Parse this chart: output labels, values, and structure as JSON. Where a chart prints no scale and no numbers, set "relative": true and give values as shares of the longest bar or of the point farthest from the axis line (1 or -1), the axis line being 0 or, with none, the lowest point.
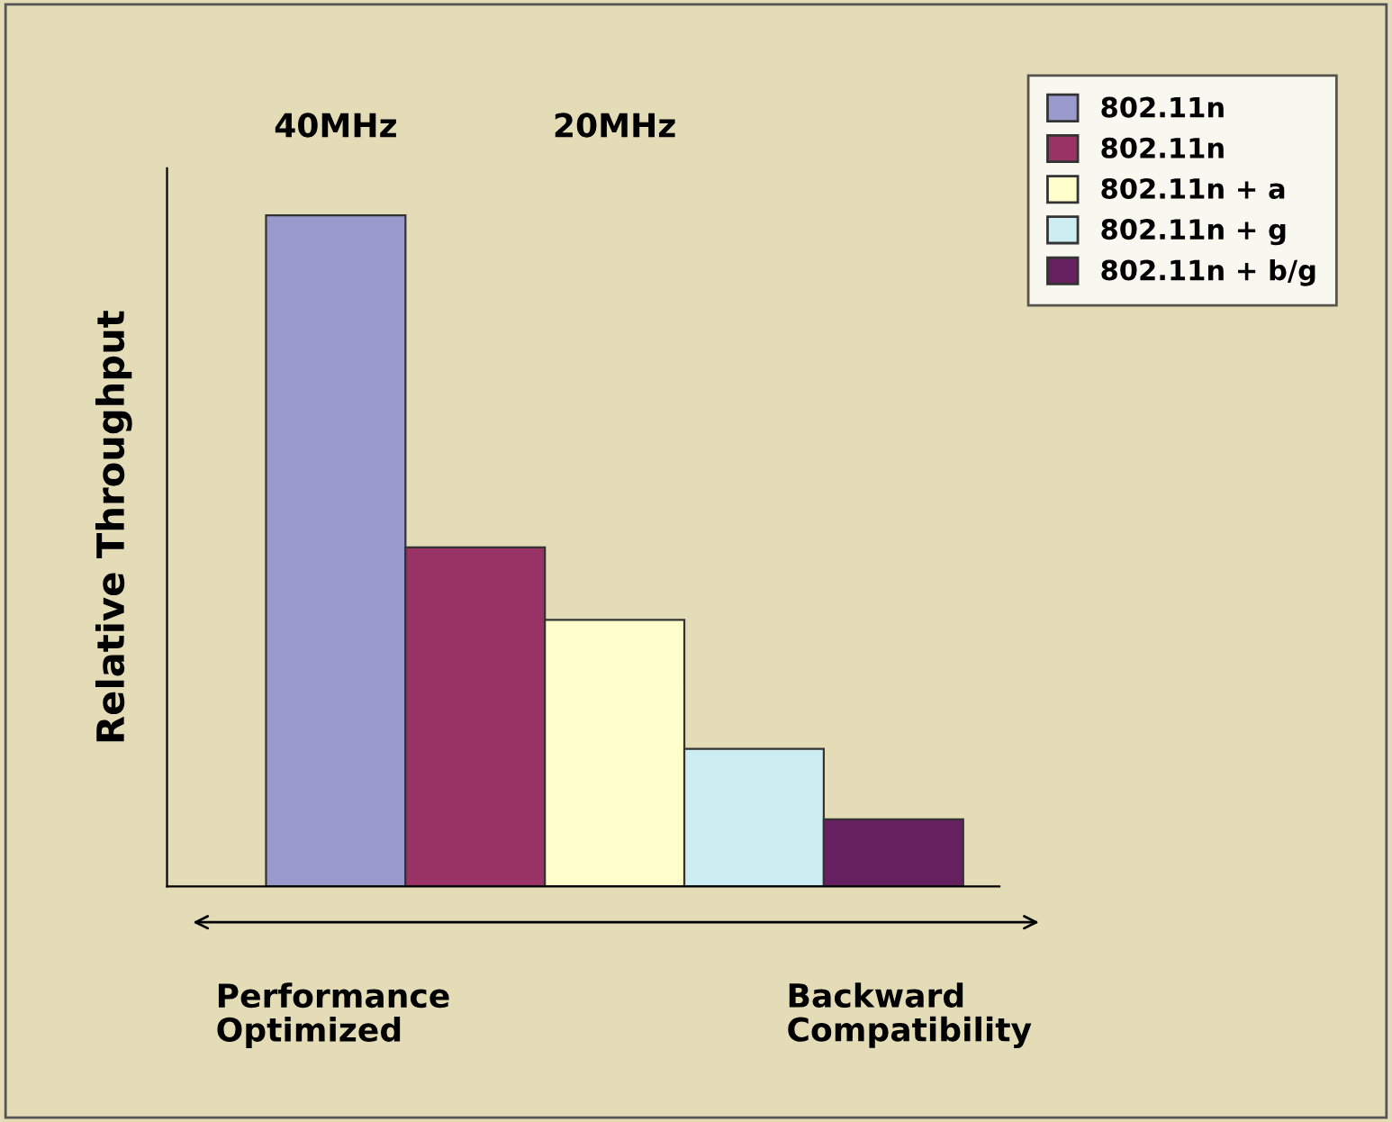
{
  "chart_data": {
    "type": "bar",
    "relative": true,
    "ylabel": "Relative Throughput",
    "categories": [
      null
    ],
    "series": [
      {
        "name": "802.11n",
        "color": "#9999cc",
        "values": [
          1
        ]
      },
      {
        "name": "802.11n",
        "color": "#993366",
        "values": [
          0.505
        ]
      },
      {
        "name": "802.11n + a",
        "color": "#ffffcc",
        "values": [
          0.397
        ]
      },
      {
        "name": "802.11n + g",
        "color": "#cceef2",
        "values": [
          0.205
        ]
      },
      {
        "name": "802.11n + b/g",
        "color": "#66205f",
        "values": [
          0.1
        ]
      }
    ],
    "annotations": [
      "40MHz",
      "20MHz",
      "Performance\nOptimized",
      "Backward\nCompatibility"
    ],
    "legend": "top right"
  }
}
